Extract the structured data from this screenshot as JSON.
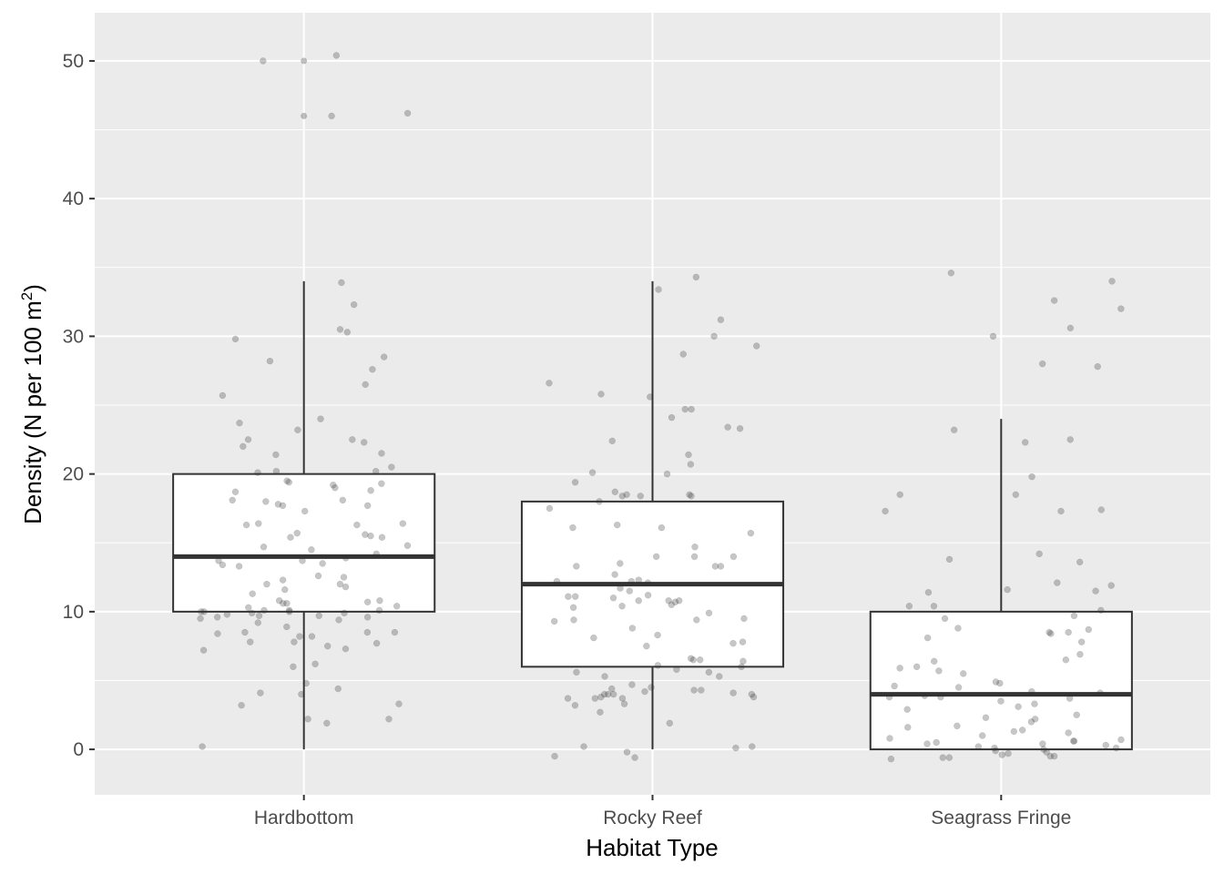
{
  "chart_data": {
    "type": "box",
    "xlabel": "Habitat Type",
    "ylabel": "Density (N per 100 m",
    "ylabel_superscript": "2",
    "ylabel_close": ")",
    "ylim": [
      -3.3,
      53.5
    ],
    "yticks": [
      0,
      10,
      20,
      30,
      40,
      50
    ],
    "ytick_labels": [
      "0",
      "10",
      "20",
      "30",
      "40",
      "50"
    ],
    "categories": [
      "Hardbottom",
      "Rocky Reef",
      "Seagrass Fringe"
    ],
    "grid": true,
    "colors": {
      "panel": "#ebebeb",
      "grid": "#ffffff",
      "box_fill": "#ffffff",
      "box_line": "#333333",
      "point": "#7f7f7f"
    },
    "boxes": [
      {
        "category": "Hardbottom",
        "min": 0,
        "q1": 10,
        "median": 14,
        "q3": 20,
        "max": 34
      },
      {
        "category": "Rocky Reef",
        "min": 0,
        "q1": 6,
        "median": 12,
        "q3": 18,
        "max": 34
      },
      {
        "category": "Seagrass Fringe",
        "min": 0,
        "q1": 0,
        "median": 4,
        "q3": 10,
        "max": 24
      }
    ],
    "outliers": [
      {
        "category": "Hardbottom",
        "values": [
          46,
          50
        ]
      }
    ],
    "points": [
      {
        "category": "Hardbottom",
        "x": [
          0.998,
          1.0,
          0.998,
          1.04,
          -0.23,
          -0.19,
          -0.1,
          -0.09,
          -0.12,
          -0.24,
          -0.26,
          0.45,
          1.1,
          1.14,
          1.14,
          1.15,
          1.08,
          1.06,
          0.99,
          1.05,
          1.21,
          1.1,
          1.17,
          1.31,
          0.78,
          0.97,
          1.07,
          1.04,
          1.26,
          0.91,
          1.09,
          0.9,
          0.94,
          1.04,
          1.14,
          1.06,
          1.0,
          1.02,
          1.03,
          1.06,
          0.95,
          0.96,
          0.94,
          1.11,
          1.18,
          1.18,
          1.12,
          1.05,
          1.08,
          1.2,
          1.09,
          1.2,
          1.22,
          1.22,
          1.08,
          1.14,
          1.19,
          1.23,
          1.17,
          1.11,
          1.11,
          1.23,
          1.16,
          1.16,
          0.94,
          1.07,
          1.05,
          1.14,
          1.2,
          1.23,
          0.95,
          0.99,
          0.99,
          1.08,
          1.03,
          1.17,
          0.9,
          0.91,
          0.93,
          1.03,
          1.02,
          1.05,
          1.0,
          1.11,
          0.96,
          0.92,
          1.05,
          1.01,
          1.16,
          0.92,
          1.09,
          1.2,
          1.0,
          0.83,
          0.8,
          0.88,
          0.92,
          0.93,
          1.01,
          0.87,
          0.85,
          0.86,
          0.85,
          1.0,
          0.91,
          1.03,
          0.81,
          0.84,
          0.85,
          0.97,
          0.93,
          0.93,
          0.96,
          0.93,
          0.87,
          1.0
        ],
        "y": [
          50.4,
          50.0,
          46.0,
          46.2,
          33.9,
          30.5,
          29.8,
          28.5,
          30.3,
          27.6,
          32.3,
          28.2,
          26.5,
          23.7,
          24.0,
          22.5,
          22.0,
          22.3,
          21.5,
          20.2,
          25.7,
          23.2,
          22.5,
          21.4,
          20.1,
          20.2,
          20.5,
          19.3,
          19.5,
          19.4,
          18.8,
          18.7,
          18.1,
          18.0,
          17.8,
          17.3,
          16.4,
          15.7,
          16.3,
          16.3,
          15.4,
          15.4,
          15.5,
          14.7,
          14.5,
          14.2,
          13.9,
          13.4,
          13.5,
          13.7,
          12.5,
          12.3,
          11.8,
          11.3,
          10.8,
          10.6,
          10.6,
          10.4,
          10.0,
          10.0,
          9.9,
          9.8,
          9.4,
          9.5,
          9.7,
          9.2,
          8.9,
          8.5,
          8.5,
          8.2,
          8.2,
          7.7,
          7.5,
          7.3,
          7.2,
          6.2,
          6.0,
          4.8,
          4.4,
          4.1,
          4.0,
          3.3,
          3.2,
          2.2,
          2.2,
          1.9,
          0.2,
          19.2,
          19.0,
          17.7,
          17.7,
          18.1,
          16.4,
          15.6,
          14.8,
          13.7,
          13.3,
          12.6,
          12.0,
          10.8,
          9.7,
          9.9,
          9.6,
          8.5,
          8.4,
          7.8,
          7.8,
          9.6,
          10.1,
          10.1,
          10.3,
          10.7,
          11.6,
          10.1,
          10.0,
          12.0
        ]
      },
      {
        "category": "Rocky Reef",
        "x": [
          0.89,
          0.94,
          0.99,
          0.98,
          0.95,
          0.83,
          0.88,
          0.75,
          0.84,
          1.25,
          1.19,
          1.29,
          1.24,
          1.04,
          1.02,
          0.99,
          1.23,
          1.22,
          1.09,
          1.14,
          1.18,
          1.23,
          1.07,
          1.12,
          1.14,
          1.16,
          1.06,
          0.94,
          0.97,
          0.88,
          0.96,
          1.12,
          1.04,
          0.97,
          0.92,
          0.94,
          0.88,
          1.04,
          1.27,
          1.25,
          1.2,
          1.3,
          0.96,
          1.1,
          1.11,
          1.19,
          0.96,
          1.06,
          1.01,
          1.03,
          0.8,
          0.77,
          0.85,
          0.89,
          0.97,
          0.95,
          0.98,
          0.82,
          0.82,
          0.97,
          0.84,
          0.98,
          1.08,
          1.11,
          1.13,
          1.08,
          1.14,
          1.19,
          1.19,
          1.16,
          1.17,
          0.95,
          0.97,
          0.93,
          1.02,
          1.09,
          1.11,
          1.08,
          1.15,
          1.08,
          1.09,
          1.18,
          1.03,
          1.14,
          1.07,
          1.07,
          1.13,
          1.07,
          1.01,
          0.93,
          0.78,
          0.79,
          0.85,
          0.9,
          0.99,
          0.96,
          1.1,
          0.85,
          0.99,
          0.99,
          0.9,
          1.07,
          1.23,
          1.27,
          1.05,
          1.04
        ],
        "y": [
          34.3,
          31.2,
          30.0,
          29.3,
          24.1,
          23.4,
          22.4,
          26.6,
          25.8,
          33.4,
          28.7,
          24.7,
          21.4,
          25.6,
          24.7,
          23.3,
          20.7,
          19.4,
          20.0,
          20.1,
          18.5,
          18.4,
          18.7,
          18.4,
          18.4,
          18.5,
          18.0,
          16.3,
          16.1,
          16.1,
          15.7,
          14.0,
          14.0,
          13.3,
          13.3,
          12.7,
          12.1,
          11.2,
          13.3,
          14.0,
          13.5,
          17.5,
          10.7,
          11.5,
          11.1,
          11.1,
          10.3,
          9.4,
          9.9,
          9.4,
          14.7,
          10.4,
          8.1,
          7.5,
          6.0,
          4.0,
          3.7,
          4.1,
          3.7,
          3.8,
          3.7,
          2.7,
          1.9,
          4.0,
          3.8,
          4.3,
          4.4,
          5.3,
          4.0,
          8.3,
          6.5,
          6.1,
          6.5,
          6.6,
          5.3,
          5.6,
          5.6,
          9.3,
          3.2,
          4.5,
          4.2,
          3.3,
          4.3,
          10.8,
          10.8,
          11.7,
          12.3,
          10.8,
          10.5,
          11.0,
          6.4,
          7.8,
          5.8,
          4.7,
          7.7,
          4.0,
          12.2,
          8.8,
          12.2,
          9.5,
          0.2,
          -0.5,
          -0.6,
          -0.2,
          0.2,
          0.1
        ],
        "x_override": []
      },
      {
        "category": "Seagrass Fringe",
        "x": [],
        "y": []
      }
    ]
  }
}
